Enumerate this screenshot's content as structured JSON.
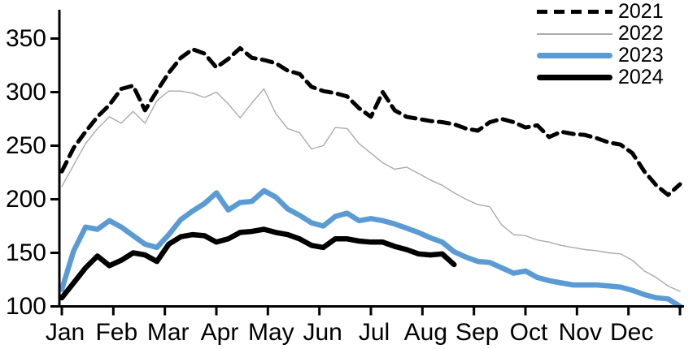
{
  "chart_data": {
    "type": "line",
    "title": "",
    "xlabel": "",
    "ylabel": "",
    "x_unit": "weekly points across one calendar year",
    "ylim": [
      100,
      350
    ],
    "yticks": [
      100,
      150,
      200,
      250,
      300,
      350
    ],
    "x_axis": {
      "months": [
        "Jan",
        "Feb",
        "Mar",
        "Apr",
        "May",
        "Jun",
        "Jul",
        "Aug",
        "Sep",
        "Oct",
        "Nov",
        "Dec"
      ]
    },
    "grid": "off",
    "legend_position": "top-right",
    "colors": {
      "y2021": "#000000",
      "y2022": "#ababab",
      "y2023": "#5b9bd5",
      "y2024": "#000000",
      "axis": "#000000"
    },
    "series": [
      {
        "name": "2021",
        "style": "dashed",
        "color": "#000000",
        "width": 5,
        "values": [
          226,
          248,
          263,
          277,
          288,
          303,
          306,
          283,
          301,
          318,
          332,
          340,
          336,
          323,
          331,
          341,
          332,
          330,
          327,
          320,
          317,
          305,
          301,
          299,
          296,
          285,
          277,
          300,
          283,
          277,
          275,
          273,
          272,
          270,
          266,
          264,
          272,
          275,
          272,
          267,
          269,
          258,
          263,
          261,
          260,
          257,
          253,
          251,
          243,
          226,
          213,
          204,
          214
        ]
      },
      {
        "name": "2022",
        "style": "solid",
        "color": "#ababab",
        "width": 1.4,
        "values": [
          212,
          232,
          252,
          266,
          277,
          271,
          282,
          271,
          292,
          301,
          301,
          299,
          295,
          300,
          289,
          276,
          290,
          303,
          280,
          266,
          262,
          247,
          250,
          267,
          266,
          252,
          243,
          234,
          228,
          230,
          224,
          218,
          213,
          206,
          200,
          195,
          193,
          176,
          167,
          166,
          162,
          160,
          157,
          155,
          153,
          152,
          150,
          149,
          143,
          133,
          127,
          119,
          114
        ]
      },
      {
        "name": "2023",
        "style": "solid",
        "color": "#5b9bd5",
        "width": 6.5,
        "values": [
          116,
          152,
          174,
          172,
          180,
          174,
          166,
          158,
          155,
          167,
          181,
          189,
          196,
          206,
          190,
          197,
          198,
          208,
          202,
          191,
          185,
          178,
          175,
          184,
          187,
          180,
          182,
          180,
          177,
          173,
          169,
          164,
          160,
          151,
          146,
          142,
          141,
          136,
          131,
          133,
          127,
          124,
          122,
          120,
          120,
          120,
          119,
          118,
          115,
          111,
          108,
          107,
          100
        ]
      },
      {
        "name": "2024",
        "style": "solid",
        "color": "#000000",
        "width": 6.5,
        "values": [
          108,
          122,
          136,
          147,
          138,
          143,
          150,
          148,
          142,
          158,
          165,
          167,
          166,
          160,
          163,
          169,
          170,
          172,
          169,
          167,
          163,
          157,
          155,
          163,
          163,
          161,
          160,
          160,
          156,
          153,
          149,
          148,
          149,
          139
        ]
      }
    ]
  }
}
